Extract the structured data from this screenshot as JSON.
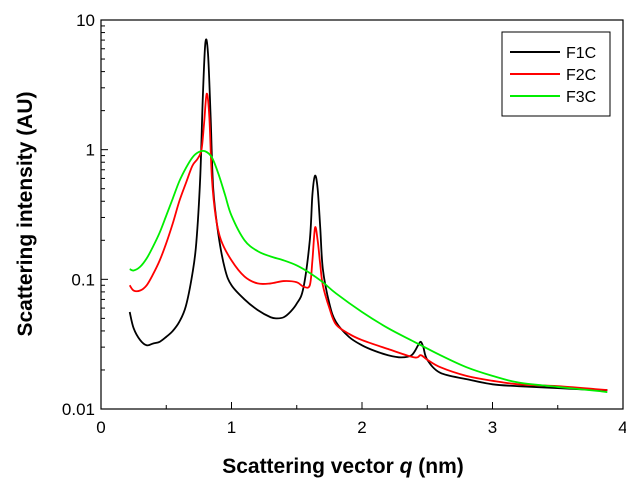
{
  "chart_data": {
    "type": "line",
    "title": "",
    "xlabel": "Scattering vector",
    "xlabel_var": "q",
    "xlabel_unit": "(nm)",
    "ylabel": "Scattering intensity (AU)",
    "xlim": [
      0,
      4
    ],
    "ylim": [
      0.01,
      10
    ],
    "yscale": "log",
    "x_ticks": [
      0,
      1,
      2,
      3,
      4
    ],
    "x_tick_labels": [
      "0",
      "1",
      "2",
      "3",
      "4"
    ],
    "y_ticks": [
      0.01,
      0.1,
      1,
      10
    ],
    "y_tick_labels": [
      "0.01",
      "0.1",
      "1",
      "10"
    ],
    "grid": false,
    "legend_position": "top-right",
    "series": [
      {
        "name": "F1C",
        "color": "#000000",
        "x": [
          0.22,
          0.25,
          0.3,
          0.35,
          0.4,
          0.45,
          0.5,
          0.55,
          0.6,
          0.65,
          0.7,
          0.73,
          0.76,
          0.78,
          0.8,
          0.82,
          0.84,
          0.86,
          0.9,
          0.95,
          1.0,
          1.1,
          1.2,
          1.3,
          1.35,
          1.4,
          1.45,
          1.5,
          1.55,
          1.6,
          1.62,
          1.64,
          1.66,
          1.68,
          1.7,
          1.75,
          1.8,
          1.9,
          2.0,
          2.1,
          2.2,
          2.3,
          2.38,
          2.43,
          2.45,
          2.47,
          2.5,
          2.6,
          2.8,
          3.0,
          3.2,
          3.5,
          3.8,
          3.88
        ],
        "y": [
          0.056,
          0.042,
          0.034,
          0.031,
          0.032,
          0.033,
          0.036,
          0.04,
          0.047,
          0.062,
          0.11,
          0.19,
          0.6,
          2.5,
          6.7,
          5.5,
          1.8,
          0.5,
          0.22,
          0.12,
          0.09,
          0.07,
          0.058,
          0.051,
          0.05,
          0.051,
          0.056,
          0.065,
          0.085,
          0.2,
          0.45,
          0.63,
          0.5,
          0.25,
          0.12,
          0.065,
          0.047,
          0.036,
          0.031,
          0.028,
          0.026,
          0.025,
          0.026,
          0.031,
          0.033,
          0.03,
          0.024,
          0.019,
          0.017,
          0.0155,
          0.015,
          0.0145,
          0.014,
          0.014
        ]
      },
      {
        "name": "F2C",
        "color": "#ff0000",
        "x": [
          0.22,
          0.25,
          0.3,
          0.35,
          0.4,
          0.45,
          0.5,
          0.55,
          0.6,
          0.65,
          0.7,
          0.74,
          0.77,
          0.79,
          0.81,
          0.83,
          0.85,
          0.88,
          0.92,
          1.0,
          1.1,
          1.2,
          1.3,
          1.4,
          1.5,
          1.55,
          1.6,
          1.62,
          1.64,
          1.66,
          1.68,
          1.7,
          1.75,
          1.8,
          1.9,
          2.0,
          2.2,
          2.4,
          2.45,
          2.5,
          2.6,
          2.8,
          3.0,
          3.2,
          3.5,
          3.8,
          3.88
        ],
        "y": [
          0.09,
          0.082,
          0.082,
          0.09,
          0.11,
          0.14,
          0.19,
          0.27,
          0.4,
          0.55,
          0.75,
          0.85,
          1.0,
          1.6,
          2.7,
          1.8,
          0.6,
          0.3,
          0.2,
          0.14,
          0.105,
          0.093,
          0.093,
          0.097,
          0.095,
          0.088,
          0.09,
          0.14,
          0.25,
          0.2,
          0.13,
          0.09,
          0.06,
          0.045,
          0.038,
          0.034,
          0.029,
          0.025,
          0.026,
          0.024,
          0.021,
          0.018,
          0.0165,
          0.0155,
          0.015,
          0.0142,
          0.014
        ]
      },
      {
        "name": "F3C",
        "color": "#00ee00",
        "x": [
          0.22,
          0.25,
          0.3,
          0.35,
          0.4,
          0.45,
          0.5,
          0.55,
          0.6,
          0.65,
          0.7,
          0.75,
          0.8,
          0.85,
          0.9,
          0.95,
          1.0,
          1.1,
          1.2,
          1.3,
          1.4,
          1.5,
          1.6,
          1.7,
          1.8,
          2.0,
          2.2,
          2.4,
          2.6,
          2.8,
          3.0,
          3.2,
          3.5,
          3.8,
          3.88
        ],
        "y": [
          0.12,
          0.117,
          0.125,
          0.145,
          0.18,
          0.23,
          0.31,
          0.42,
          0.57,
          0.72,
          0.87,
          0.96,
          0.97,
          0.87,
          0.65,
          0.45,
          0.31,
          0.2,
          0.165,
          0.15,
          0.14,
          0.128,
          0.112,
          0.095,
          0.078,
          0.056,
          0.042,
          0.033,
          0.026,
          0.021,
          0.018,
          0.016,
          0.0148,
          0.0138,
          0.0135
        ]
      }
    ]
  }
}
